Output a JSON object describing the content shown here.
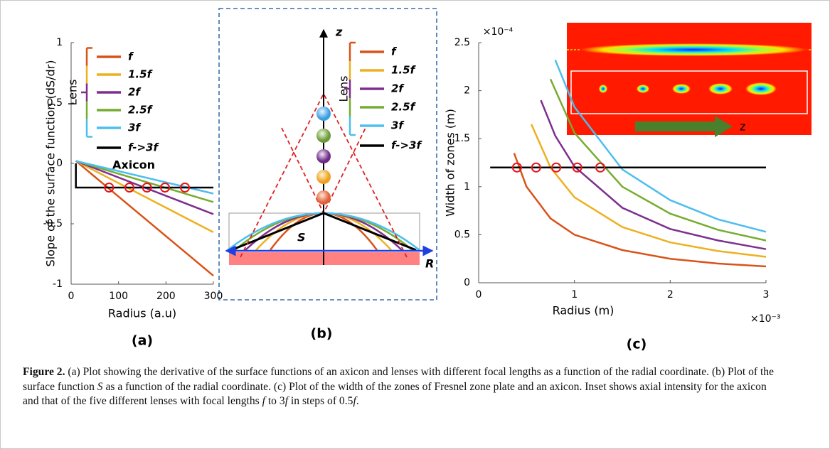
{
  "chart_data": [
    {
      "type": "line",
      "ylabel": "Slope of the surface function (dS/dr)",
      "xlabel": "Radius (a.u)",
      "panel_label": "(a)",
      "xlim": [
        0,
        300
      ],
      "xticks": [
        0,
        100,
        200,
        300
      ],
      "ylim": [
        -1,
        1
      ],
      "yticks": [
        -1,
        -0.5,
        0,
        0.5,
        1
      ],
      "legend_group": "Lens",
      "annotation": "Axicon",
      "series": [
        {
          "name": "f",
          "color": "#d95319",
          "x": [
            10,
            300
          ],
          "values": [
            0.02,
            -0.93
          ]
        },
        {
          "name": "1.5f",
          "color": "#edb120",
          "x": [
            10,
            300
          ],
          "values": [
            0.02,
            -0.57
          ]
        },
        {
          "name": "2f",
          "color": "#7e2f8e",
          "x": [
            10,
            300
          ],
          "values": [
            0.02,
            -0.42
          ]
        },
        {
          "name": "2.5f",
          "color": "#77ac30",
          "x": [
            10,
            300
          ],
          "values": [
            0.02,
            -0.32
          ]
        },
        {
          "name": "3f",
          "color": "#4dbeee",
          "x": [
            10,
            300
          ],
          "values": [
            0.02,
            -0.25
          ]
        },
        {
          "name": "f->3f",
          "color": "#000000",
          "x": [
            10,
            10,
            300
          ],
          "values": [
            0,
            -0.2,
            -0.2
          ]
        }
      ],
      "markers": {
        "color": "#e8141b",
        "x": [
          80,
          123,
          160,
          198,
          240
        ],
        "values": [
          -0.2,
          -0.2,
          -0.2,
          -0.2,
          -0.2
        ]
      }
    },
    {
      "type": "line",
      "ylabel": "Width of zones (m)",
      "xlabel": "Radius (m)",
      "panel_label": "(c)",
      "x_multiplier": "×10⁻³",
      "y_multiplier": "×10⁻⁴",
      "xlim": [
        0,
        3
      ],
      "xticks": [
        0,
        1,
        2,
        3
      ],
      "ylim": [
        0,
        2.5
      ],
      "yticks": [
        0,
        0.5,
        1,
        1.5,
        2,
        2.5
      ],
      "inset_label": "z",
      "series": [
        {
          "name": "f",
          "color": "#d95319",
          "x": [
            0.37,
            0.5,
            0.75,
            1,
            1.5,
            2,
            2.5,
            3
          ],
          "values": [
            1.35,
            1.0,
            0.67,
            0.5,
            0.34,
            0.25,
            0.2,
            0.17
          ]
        },
        {
          "name": "1.5f",
          "color": "#edb120",
          "x": [
            0.55,
            0.75,
            1,
            1.5,
            2,
            2.5,
            3
          ],
          "values": [
            1.65,
            1.2,
            0.89,
            0.58,
            0.42,
            0.33,
            0.27
          ]
        },
        {
          "name": "2f",
          "color": "#7e2f8e",
          "x": [
            0.65,
            0.8,
            1,
            1.5,
            2,
            2.5,
            3
          ],
          "values": [
            1.9,
            1.53,
            1.21,
            0.78,
            0.56,
            0.44,
            0.35
          ]
        },
        {
          "name": "2.5f",
          "color": "#77ac30",
          "x": [
            0.75,
            1,
            1.5,
            2,
            2.5,
            3
          ],
          "values": [
            2.12,
            1.56,
            1.0,
            0.72,
            0.55,
            0.44
          ]
        },
        {
          "name": "3f",
          "color": "#4dbeee",
          "x": [
            0.8,
            1,
            1.5,
            2,
            2.5,
            3
          ],
          "values": [
            2.32,
            1.83,
            1.18,
            0.86,
            0.66,
            0.53
          ]
        },
        {
          "color": "#000000",
          "x": [
            0.12,
            3
          ],
          "values": [
            1.2,
            1.2
          ]
        }
      ],
      "markers": {
        "color": "#e8141b",
        "x": [
          0.4,
          0.6,
          0.81,
          1.03,
          1.27
        ],
        "values": [
          1.2,
          1.2,
          1.2,
          1.2,
          1.2
        ]
      }
    }
  ],
  "diagram_b": {
    "panel_label": "(b)",
    "axis_z": "z",
    "axis_r": "R",
    "surface": "S",
    "legend_group": "Lens",
    "legend": [
      {
        "label": "f",
        "color": "#d95319"
      },
      {
        "label": "1.5f",
        "color": "#edb120"
      },
      {
        "label": "2f",
        "color": "#7e2f8e"
      },
      {
        "label": "2.5f",
        "color": "#77ac30"
      },
      {
        "label": "3f",
        "color": "#4dbeee"
      },
      {
        "label": "f->3f",
        "color": "#000000"
      }
    ]
  },
  "caption": {
    "label": "Figure 2.",
    "segments": [
      {
        "text": " (a) Plot showing the derivative of the surface functions of an axicon and lenses with different focal lengths as a function of the radial coordinate. (b) Plot of the surface function ",
        "italic": false
      },
      {
        "text": "S",
        "italic": true
      },
      {
        "text": " as a function of the radial coordinate. (c) Plot of the width of the zones of Fresnel zone plate and an axicon. Inset shows axial intensity for the axicon and that of the five different lenses with focal lengths ",
        "italic": false
      },
      {
        "text": "f",
        "italic": true
      },
      {
        "text": " to 3",
        "italic": false
      },
      {
        "text": "f",
        "italic": true
      },
      {
        "text": " in steps of 0.5",
        "italic": false
      },
      {
        "text": "f",
        "italic": true
      },
      {
        "text": ".",
        "italic": false
      }
    ]
  }
}
